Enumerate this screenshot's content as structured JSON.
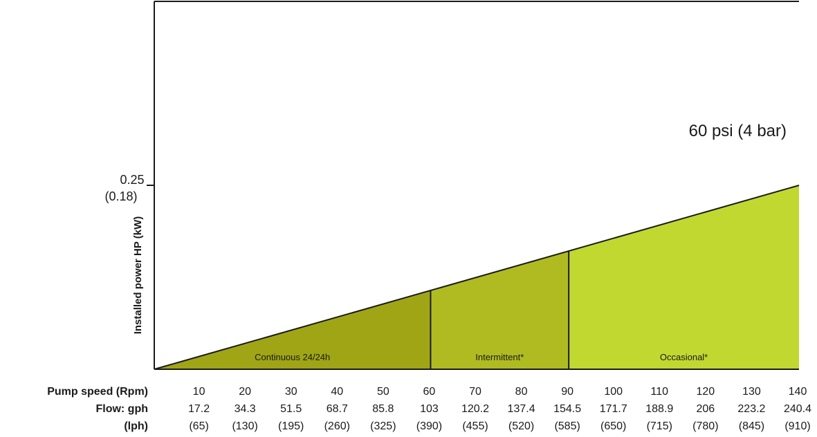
{
  "chart_data": {
    "type": "area",
    "title": "",
    "xlabel": "Pump speed (Rpm)",
    "ylabel": "Installed power HP (kW)",
    "x_rows": [
      {
        "label": "Pump speed (Rpm)",
        "values": [
          "10",
          "20",
          "30",
          "40",
          "50",
          "60",
          "70",
          "80",
          "90",
          "100",
          "110",
          "120",
          "130",
          "140"
        ]
      },
      {
        "label": "Flow: gph",
        "values": [
          "17.2",
          "34.3",
          "51.5",
          "68.7",
          "85.8",
          "103",
          "120.2",
          "137.4",
          "154.5",
          "171.7",
          "188.9",
          "206",
          "223.2",
          "240.4"
        ]
      },
      {
        "label": "(lph)",
        "values": [
          "(65)",
          "(130)",
          "(195)",
          "(260)",
          "(325)",
          "(390)",
          "(455)",
          "(520)",
          "(585)",
          "(650)",
          "(715)",
          "(780)",
          "(845)",
          "(910)"
        ]
      }
    ],
    "xlim": [
      0,
      140
    ],
    "ylim": [
      0,
      0.5
    ],
    "y_ticks": [
      {
        "value": 0.25,
        "label": "0.25",
        "sublabel": "(0.18)"
      }
    ],
    "series": [
      {
        "name": "60 psi (4 bar)",
        "x": [
          0,
          140
        ],
        "y": [
          0,
          0.25
        ]
      }
    ],
    "zones": [
      {
        "label": "Continuous 24/24h",
        "from": 0,
        "to": 60,
        "color": "#a0a516"
      },
      {
        "label": "Intermittent*",
        "from": 60,
        "to": 90,
        "color": "#b0bb22"
      },
      {
        "label": "Occasional*",
        "from": 90,
        "to": 140,
        "color": "#c1d831"
      }
    ]
  }
}
